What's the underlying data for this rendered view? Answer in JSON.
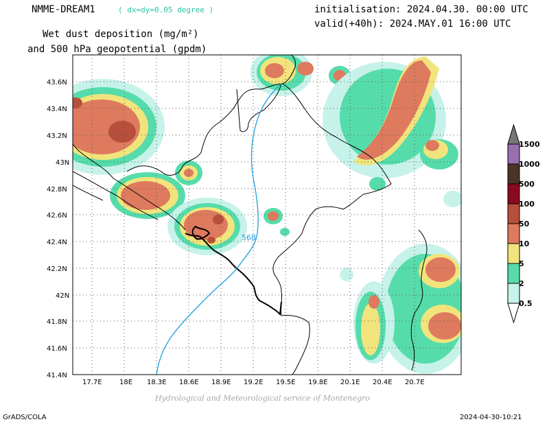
{
  "header": {
    "model_name": "NMME-DREAM1",
    "resolution": "( dx=dy=0.05 degree )",
    "init": "initialisation: 2024.04.30. 00:00 UTC",
    "valid": "valid(+40h): 2024.MAY.01 16:00 UTC",
    "title_line1": "Wet dust deposition (mg/m²)",
    "title_line2": "and 500 hPa geopotential (gpdm)"
  },
  "axes": {
    "x_ticks": [
      "17.7E",
      "18E",
      "18.3E",
      "18.6E",
      "18.9E",
      "19.2E",
      "19.5E",
      "19.8E",
      "20.1E",
      "20.4E",
      "20.7E"
    ],
    "y_ticks": [
      "43.6N",
      "43.4N",
      "43.2N",
      "43N",
      "42.8N",
      "42.6N",
      "42.4N",
      "42.2N",
      "42N",
      "41.8N",
      "41.6N",
      "41.4N"
    ]
  },
  "contour": {
    "label": "568",
    "color": "#1e9ee0"
  },
  "legend": {
    "levels": [
      "1500",
      "1000",
      "500",
      "100",
      "50",
      "10",
      "5",
      "2",
      "0.5"
    ],
    "colors": [
      "#9a6fb0",
      "#4a3426",
      "#8a0a20",
      "#b84e3c",
      "#de7a5e",
      "#f2e47c",
      "#56dcaa",
      "#c6f2ea"
    ]
  },
  "footer": {
    "credit": "Hydrological and Meteorological service of Montenegro",
    "left": "GrADS/COLA",
    "right": "2024-04-30-10:21"
  }
}
